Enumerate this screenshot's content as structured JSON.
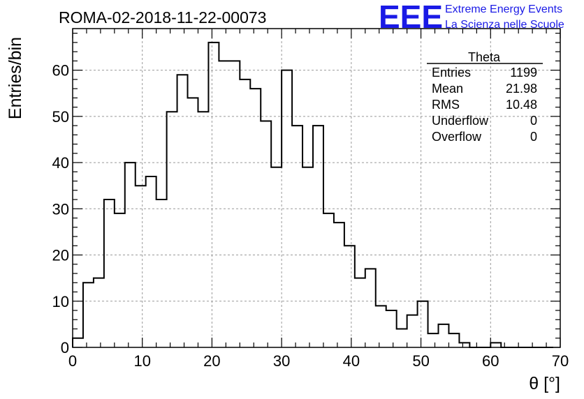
{
  "header": {
    "run_title": "ROMA-02-2018-11-22-00073",
    "logo_text": "EEE",
    "brand_line1": "Extreme Energy Events",
    "brand_line2": "La Scienza nelle Scuole"
  },
  "colors": {
    "brand": "#1a1ae6",
    "line": "#000000",
    "grid": "#999999"
  },
  "chart_data": {
    "type": "bar",
    "histogram_style": "step",
    "xlabel": "θ [°]",
    "ylabel": "Entries/bin",
    "xlim": [
      0,
      70
    ],
    "ylim": [
      0,
      69
    ],
    "grid": true,
    "bin_width": 1.5,
    "bin_start": 0,
    "values": [
      2,
      14,
      15,
      32,
      29,
      40,
      35,
      37,
      32,
      51,
      59,
      54,
      51,
      66,
      62,
      62,
      58,
      56,
      49,
      39,
      60,
      48,
      39,
      48,
      29,
      27,
      22,
      15,
      17,
      9,
      8,
      4,
      7,
      10,
      3,
      5,
      3,
      1,
      0,
      0,
      1,
      0,
      0,
      0,
      0,
      0
    ],
    "x_ticks": [
      0,
      10,
      20,
      30,
      40,
      50,
      60,
      70
    ],
    "y_ticks": [
      0,
      10,
      20,
      30,
      40,
      50,
      60
    ],
    "stats": {
      "title": "Theta",
      "placement": "top-right",
      "rows": [
        {
          "label": "Entries",
          "value": "1199"
        },
        {
          "label": "Mean",
          "value": "21.98"
        },
        {
          "label": "RMS",
          "value": "10.48"
        },
        {
          "label": "Underflow",
          "value": "0"
        },
        {
          "label": "Overflow",
          "value": "0"
        }
      ]
    }
  }
}
